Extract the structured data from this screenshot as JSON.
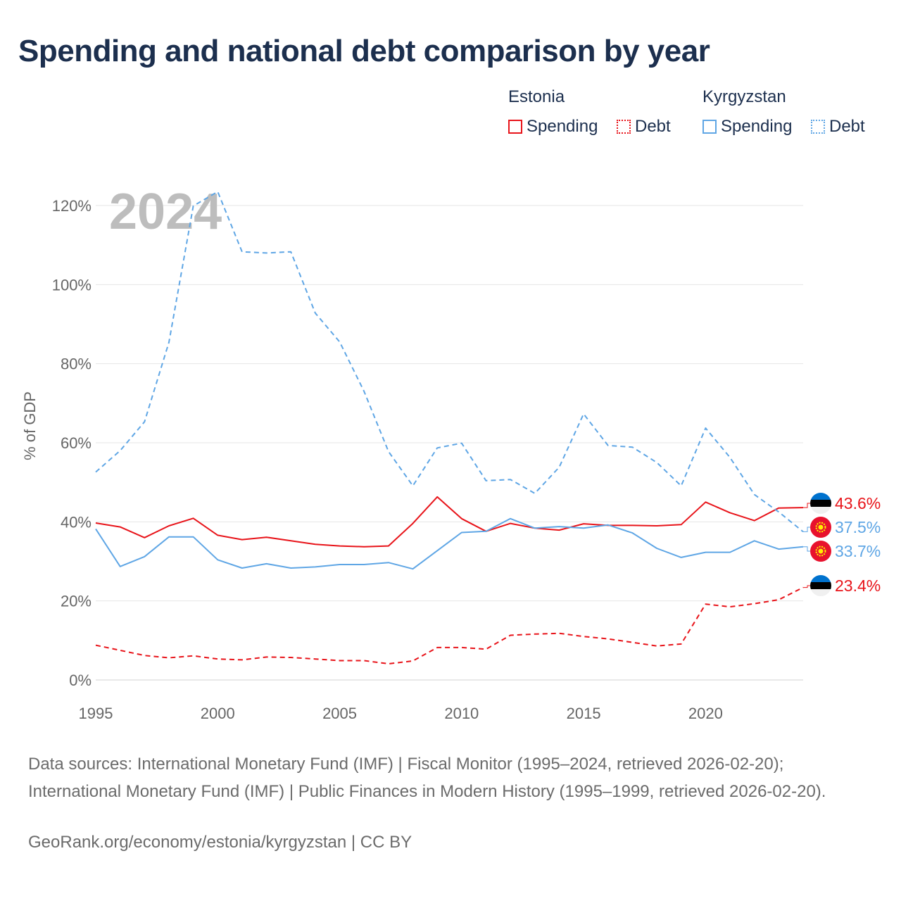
{
  "title": "Spending and national debt comparison by year",
  "legend": {
    "groups": [
      {
        "country": "Estonia",
        "items": [
          "Spending",
          "Debt"
        ]
      },
      {
        "country": "Kyrgyzstan",
        "items": [
          "Spending",
          "Debt"
        ]
      }
    ]
  },
  "colors": {
    "estonia": "#e8141a",
    "kyrgyzstan": "#5fa6e5",
    "grid": "#e6e6e6",
    "axis_text": "#666666",
    "year_watermark": "#bdbdbd"
  },
  "chart_data": {
    "type": "line",
    "year_watermark": "2024",
    "ylabel": "% of GDP",
    "xlabel": "",
    "ylim": [
      0,
      125
    ],
    "xlim": [
      1995,
      2024
    ],
    "y_ticks": [
      0,
      20,
      40,
      60,
      80,
      100,
      120
    ],
    "y_tick_labels": [
      "0%",
      "20%",
      "40%",
      "60%",
      "80%",
      "100%",
      "120%"
    ],
    "x_ticks": [
      1995,
      2000,
      2005,
      2010,
      2015,
      2020
    ],
    "x_tick_labels": [
      "1995",
      "2000",
      "2005",
      "2010",
      "2015",
      "2020"
    ],
    "grid": true,
    "x": [
      1995,
      1996,
      1997,
      1998,
      1999,
      2000,
      2001,
      2002,
      2003,
      2004,
      2005,
      2006,
      2007,
      2008,
      2009,
      2010,
      2011,
      2012,
      2013,
      2014,
      2015,
      2016,
      2017,
      2018,
      2019,
      2020,
      2021,
      2022,
      2023,
      2024
    ],
    "series": [
      {
        "name": "Estonia Spending",
        "country": "Estonia",
        "measure": "Spending",
        "style": "solid",
        "values": [
          39.7,
          38.7,
          36.0,
          39.0,
          40.9,
          36.6,
          35.5,
          36.1,
          35.2,
          34.3,
          33.9,
          33.7,
          33.9,
          39.6,
          46.3,
          40.8,
          37.6,
          39.6,
          38.4,
          37.9,
          39.5,
          39.1,
          39.1,
          39.0,
          39.3,
          45.0,
          42.3,
          40.3,
          43.5,
          43.6
        ],
        "end_label": "43.6%"
      },
      {
        "name": "Estonia Debt",
        "country": "Estonia",
        "measure": "Debt",
        "style": "dashed",
        "values": [
          8.8,
          7.5,
          6.2,
          5.6,
          6.1,
          5.3,
          5.1,
          5.8,
          5.7,
          5.3,
          4.9,
          4.9,
          4.1,
          4.8,
          8.2,
          8.2,
          7.8,
          11.3,
          11.6,
          11.8,
          11.0,
          10.4,
          9.5,
          8.6,
          9.1,
          19.2,
          18.5,
          19.3,
          20.3,
          23.4
        ],
        "end_label": "23.4%"
      },
      {
        "name": "Kyrgyzstan Spending",
        "country": "Kyrgyzstan",
        "measure": "Spending",
        "style": "solid",
        "values": [
          38.2,
          28.7,
          31.2,
          36.2,
          36.2,
          30.4,
          28.3,
          29.4,
          28.3,
          28.6,
          29.2,
          29.2,
          29.7,
          28.1,
          32.7,
          37.3,
          37.6,
          40.8,
          38.4,
          38.8,
          38.4,
          39.2,
          37.2,
          33.3,
          31.0,
          32.3,
          32.3,
          35.2,
          33.1,
          33.7
        ],
        "end_label": "33.7%"
      },
      {
        "name": "Kyrgyzstan Debt",
        "country": "Kyrgyzstan",
        "measure": "Debt",
        "style": "dashed",
        "values": [
          52.6,
          58.0,
          65.3,
          85.4,
          119.9,
          123.5,
          108.3,
          108.0,
          108.3,
          92.8,
          85.5,
          73.0,
          57.8,
          49.1,
          58.7,
          59.9,
          50.4,
          50.7,
          47.2,
          53.8,
          67.3,
          59.3,
          58.9,
          55.0,
          49.1,
          63.7,
          56.3,
          46.9,
          42.5,
          37.5
        ],
        "end_label": "37.5%"
      }
    ]
  },
  "footer": {
    "source": "Data sources: International Monetary Fund (IMF) | Fiscal Monitor (1995–2024, retrieved 2026-02-20); International Monetary Fund (IMF) | Public Finances in Modern History (1995–1999, retrieved 2026-02-20).",
    "credit": "GeoRank.org/economy/estonia/kyrgyzstan | CC BY"
  }
}
